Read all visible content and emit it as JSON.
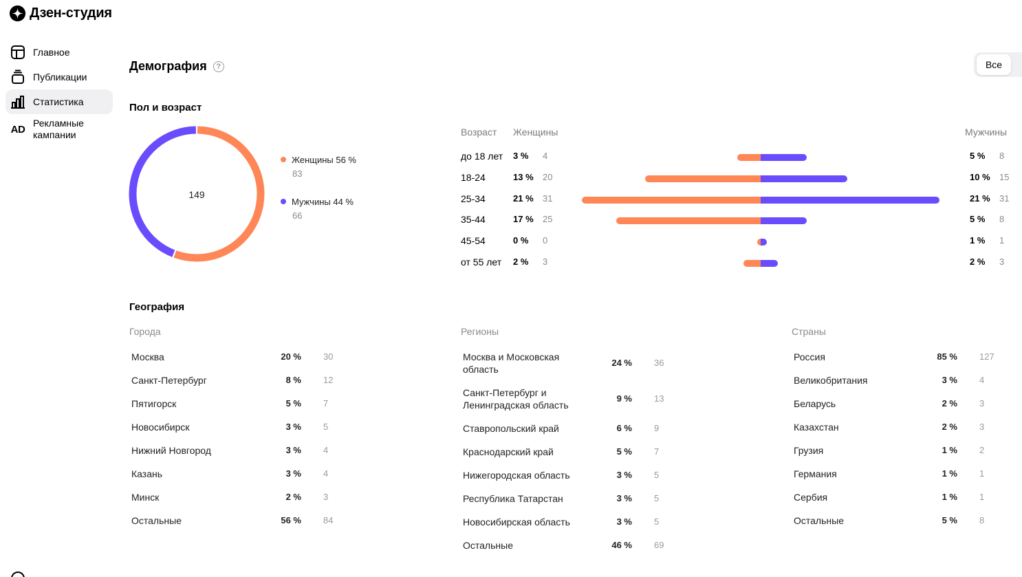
{
  "app": {
    "title": "Дзен-студия"
  },
  "sidebar": {
    "items": [
      {
        "label": "Главное",
        "icon": "layout-icon"
      },
      {
        "label": "Публикации",
        "icon": "publications-icon"
      },
      {
        "label": "Статистика",
        "icon": "stats-icon",
        "active": true
      },
      {
        "label": "Рекламные кампании",
        "icon": "ad-icon",
        "icon_text": "AD"
      }
    ]
  },
  "page": {
    "title": "Демография",
    "filter_label": "Все"
  },
  "gender_age": {
    "title": "Пол и возраст",
    "total": "149",
    "legend": [
      {
        "label": "Женщины 56 %",
        "count": "83",
        "color": "#ff8656"
      },
      {
        "label": "Мужчины 44 %",
        "count": "66",
        "color": "#6a4cfc"
      }
    ],
    "table_headers": {
      "age": "Возраст",
      "women": "Женщины",
      "men": "Мужчины"
    },
    "rows": [
      {
        "age": "до 18 лет",
        "w_pct": "3 %",
        "w_cnt": "4",
        "m_pct": "5 %",
        "m_cnt": "8"
      },
      {
        "age": "18-24",
        "w_pct": "13 %",
        "w_cnt": "20",
        "m_pct": "10 %",
        "m_cnt": "15"
      },
      {
        "age": "25-34",
        "w_pct": "21 %",
        "w_cnt": "31",
        "m_pct": "21 %",
        "m_cnt": "31"
      },
      {
        "age": "35-44",
        "w_pct": "17 %",
        "w_cnt": "25",
        "m_pct": "5 %",
        "m_cnt": "8"
      },
      {
        "age": "45-54",
        "w_pct": "0 %",
        "w_cnt": "0",
        "m_pct": "1 %",
        "m_cnt": "1"
      },
      {
        "age": "от 55 лет",
        "w_pct": "2 %",
        "w_cnt": "3",
        "m_pct": "2 %",
        "m_cnt": "3"
      }
    ]
  },
  "geography": {
    "title": "География",
    "cities": {
      "title": "Города",
      "rows": [
        {
          "name": "Москва",
          "pct": "20 %",
          "cnt": "30"
        },
        {
          "name": "Санкт-Петербург",
          "pct": "8 %",
          "cnt": "12"
        },
        {
          "name": "Пятигорск",
          "pct": "5 %",
          "cnt": "7"
        },
        {
          "name": "Новосибирск",
          "pct": "3 %",
          "cnt": "5"
        },
        {
          "name": "Нижний Новгород",
          "pct": "3 %",
          "cnt": "4"
        },
        {
          "name": "Казань",
          "pct": "3 %",
          "cnt": "4"
        },
        {
          "name": "Минск",
          "pct": "2 %",
          "cnt": "3"
        },
        {
          "name": "Остальные",
          "pct": "56 %",
          "cnt": "84"
        }
      ]
    },
    "regions": {
      "title": "Регионы",
      "rows": [
        {
          "name_1": "Москва и Московская",
          "name_2": "область",
          "pct": "24 %",
          "cnt": "36"
        },
        {
          "name_1": "Санкт-Петербург и",
          "name_2": "Ленинградская область",
          "pct": "9 %",
          "cnt": "13"
        },
        {
          "name": "Ставропольский край",
          "pct": "6 %",
          "cnt": "9"
        },
        {
          "name": "Краснодарский край",
          "pct": "5 %",
          "cnt": "7"
        },
        {
          "name": "Нижегородская область",
          "pct": "3 %",
          "cnt": "5"
        },
        {
          "name": "Республика Татарстан",
          "pct": "3 %",
          "cnt": "5"
        },
        {
          "name": "Новосибирская область",
          "pct": "3 %",
          "cnt": "5"
        },
        {
          "name": "Остальные",
          "pct": "46 %",
          "cnt": "69"
        }
      ]
    },
    "countries": {
      "title": "Страны",
      "rows": [
        {
          "name": "Россия",
          "pct": "85 %",
          "cnt": "127"
        },
        {
          "name": "Великобритания",
          "pct": "3 %",
          "cnt": "4"
        },
        {
          "name": "Беларусь",
          "pct": "2 %",
          "cnt": "3"
        },
        {
          "name": "Казахстан",
          "pct": "2 %",
          "cnt": "3"
        },
        {
          "name": "Грузия",
          "pct": "1 %",
          "cnt": "2"
        },
        {
          "name": "Германия",
          "pct": "1 %",
          "cnt": "1"
        },
        {
          "name": "Сербия",
          "pct": "1 %",
          "cnt": "1"
        },
        {
          "name": "Остальные",
          "pct": "5 %",
          "cnt": "8"
        }
      ]
    }
  },
  "chart_data": [
    {
      "type": "pie",
      "categories": [
        "Женщины",
        "Мужчины"
      ],
      "values": [
        83,
        66
      ],
      "percent": [
        56,
        44
      ],
      "colors": [
        "#ff8656",
        "#6a4cfc"
      ],
      "total": 149,
      "donut": true
    },
    {
      "type": "bar",
      "orientation": "horizontal-diverging",
      "categories": [
        "до 18 лет",
        "18-24",
        "25-34",
        "35-44",
        "45-54",
        "от 55 лет"
      ],
      "series": [
        {
          "name": "Женщины",
          "values": [
            4,
            20,
            31,
            25,
            0,
            3
          ],
          "percent": [
            3,
            13,
            21,
            17,
            0,
            2
          ],
          "color": "#ff8656"
        },
        {
          "name": "Мужчины",
          "values": [
            8,
            15,
            31,
            8,
            1,
            3
          ],
          "percent": [
            5,
            10,
            21,
            5,
            1,
            2
          ],
          "color": "#6a4cfc"
        }
      ]
    }
  ]
}
